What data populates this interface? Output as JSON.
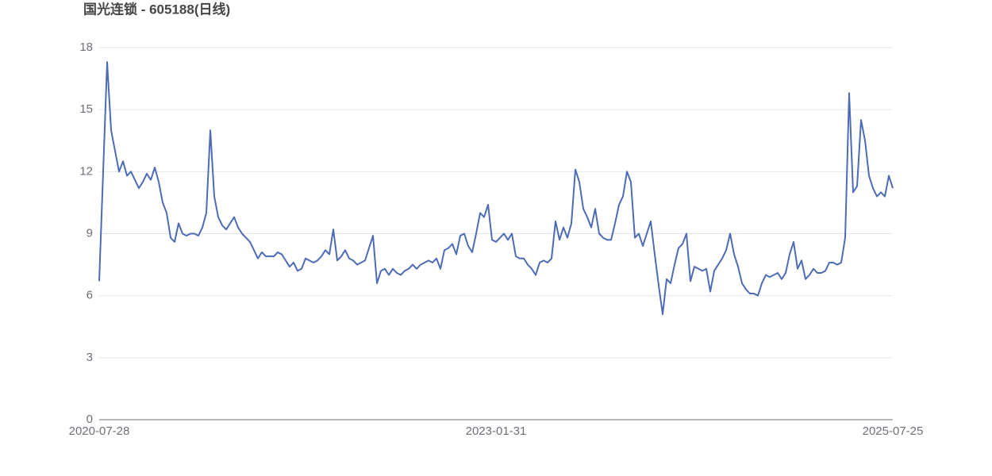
{
  "chart_data": {
    "type": "line",
    "title": "国光连锁 - 605188(日线)",
    "color": "#4e6bb5",
    "ylim": [
      0,
      18
    ],
    "yticks": [
      0,
      3,
      6,
      9,
      12,
      15,
      18
    ],
    "grid": true,
    "categories": [
      "2020-07-28",
      null,
      null,
      null,
      null,
      null,
      null,
      null,
      null,
      null,
      null,
      null,
      null,
      null,
      null,
      null,
      null,
      null,
      null,
      null,
      null,
      null,
      null,
      null,
      null,
      null,
      null,
      null,
      null,
      null,
      null,
      null,
      null,
      null,
      null,
      null,
      null,
      null,
      null,
      null,
      null,
      null,
      null,
      null,
      null,
      null,
      null,
      null,
      null,
      null,
      null,
      null,
      null,
      null,
      null,
      null,
      null,
      null,
      null,
      null,
      null,
      null,
      null,
      null,
      null,
      null,
      null,
      null,
      null,
      null,
      null,
      null,
      null,
      null,
      null,
      null,
      null,
      null,
      null,
      null,
      null,
      null,
      null,
      null,
      null,
      null,
      null,
      null,
      null,
      null,
      null,
      null,
      null,
      null,
      null,
      null,
      null,
      null,
      null,
      null,
      "2023-01-31",
      null,
      null,
      null,
      null,
      null,
      null,
      null,
      null,
      null,
      null,
      null,
      null,
      null,
      null,
      null,
      null,
      null,
      null,
      null,
      null,
      null,
      null,
      null,
      null,
      null,
      null,
      null,
      null,
      null,
      null,
      null,
      null,
      null,
      null,
      null,
      null,
      null,
      null,
      null,
      null,
      null,
      null,
      null,
      null,
      null,
      null,
      null,
      null,
      null,
      null,
      null,
      null,
      null,
      null,
      null,
      null,
      null,
      null,
      null,
      null,
      null,
      null,
      null,
      null,
      null,
      null,
      null,
      null,
      null,
      null,
      null,
      null,
      null,
      null,
      null,
      null,
      null,
      null,
      null,
      null,
      null,
      null,
      null,
      null,
      null,
      null,
      null,
      null,
      null,
      null,
      null,
      null,
      null,
      null,
      null,
      null,
      null,
      null,
      null,
      "2025-07-25"
    ],
    "values": [
      6.7,
      12.0,
      17.3,
      14.0,
      13.0,
      12.0,
      12.5,
      11.8,
      12.0,
      11.6,
      11.2,
      11.5,
      11.9,
      11.6,
      12.2,
      11.5,
      10.5,
      10.0,
      8.8,
      8.6,
      9.5,
      9.0,
      8.9,
      9.0,
      9.0,
      8.9,
      9.3,
      10.0,
      14.0,
      10.8,
      9.8,
      9.4,
      9.2,
      9.5,
      9.8,
      9.3,
      9.0,
      8.8,
      8.6,
      8.2,
      7.8,
      8.1,
      7.9,
      7.9,
      7.9,
      8.1,
      8.0,
      7.7,
      7.4,
      7.6,
      7.2,
      7.3,
      7.8,
      7.7,
      7.6,
      7.7,
      7.9,
      8.2,
      8.0,
      9.2,
      7.7,
      7.9,
      8.2,
      7.8,
      7.7,
      7.5,
      7.6,
      7.7,
      8.3,
      8.9,
      6.6,
      7.2,
      7.3,
      7.0,
      7.3,
      7.1,
      7.0,
      7.2,
      7.3,
      7.5,
      7.3,
      7.5,
      7.6,
      7.7,
      7.6,
      7.8,
      7.3,
      8.2,
      8.3,
      8.5,
      8.0,
      8.9,
      9.0,
      8.4,
      8.1,
      9.0,
      10.0,
      9.8,
      10.4,
      8.7,
      8.6,
      8.8,
      9.0,
      8.7,
      9.0,
      7.9,
      7.8,
      7.8,
      7.5,
      7.3,
      7.0,
      7.6,
      7.7,
      7.6,
      7.8,
      9.6,
      8.7,
      9.3,
      8.8,
      9.5,
      12.1,
      11.5,
      10.2,
      9.8,
      9.3,
      10.2,
      9.0,
      8.8,
      8.7,
      8.7,
      9.5,
      10.4,
      10.8,
      12.0,
      11.5,
      8.8,
      9.0,
      8.4,
      9.0,
      9.6,
      8.0,
      6.5,
      5.1,
      6.8,
      6.6,
      7.5,
      8.3,
      8.5,
      9.0,
      6.7,
      7.4,
      7.3,
      7.2,
      7.3,
      6.2,
      7.2,
      7.5,
      7.8,
      8.2,
      9.0,
      8.0,
      7.4,
      6.6,
      6.3,
      6.1,
      6.1,
      6.0,
      6.6,
      7.0,
      6.9,
      7.0,
      7.1,
      6.8,
      7.1,
      8.0,
      8.6,
      7.3,
      7.7,
      6.8,
      7.0,
      7.3,
      7.1,
      7.1,
      7.2,
      7.6,
      7.6,
      7.5,
      7.6,
      8.8,
      15.8,
      11.0,
      11.3,
      14.5,
      13.5,
      11.8,
      11.2,
      10.8,
      11.0,
      10.8,
      11.8,
      11.2
    ]
  }
}
